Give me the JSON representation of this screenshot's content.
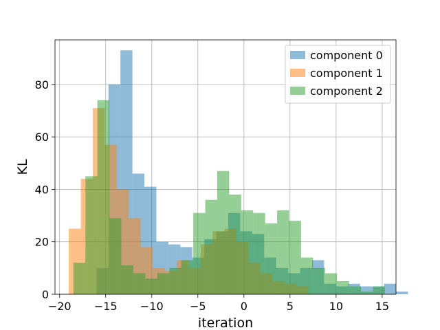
{
  "chart_data": {
    "type": "bar",
    "title": "",
    "xlabel": "iteration",
    "ylabel": "KL",
    "xlim": [
      -20.5,
      16.5
    ],
    "ylim": [
      0,
      97
    ],
    "xticks": [
      -20,
      -15,
      -10,
      -5,
      0,
      5,
      10,
      15
    ],
    "xtick_labels": [
      "−20",
      "−15",
      "−10",
      "−5",
      "0",
      "5",
      "10",
      "15"
    ],
    "yticks": [
      0,
      20,
      40,
      60,
      80
    ],
    "ytick_labels": [
      "0",
      "20",
      "40",
      "60",
      "80"
    ],
    "grid": true,
    "legend_position": "top-right",
    "series": [
      {
        "name": "component 0",
        "color": "#1f77b4",
        "alpha": 0.5,
        "bin_start": -16.0,
        "bin_width": 1.3,
        "values": [
          10,
          80,
          93,
          46,
          41,
          20,
          19,
          18,
          14,
          21,
          24,
          31,
          24,
          23,
          14,
          10,
          8,
          10,
          13,
          4,
          3,
          4,
          3,
          3,
          4,
          1
        ]
      },
      {
        "name": "component 1",
        "color": "#ff7f0e",
        "alpha": 0.5,
        "bin_start": -19.0,
        "bin_width": 1.3,
        "values": [
          25,
          44,
          71,
          57,
          40,
          29,
          18,
          10,
          9,
          13,
          10,
          19,
          24,
          25,
          20,
          12,
          8,
          5,
          4,
          3
        ]
      },
      {
        "name": "component 2",
        "color": "#2ca02c",
        "alpha": 0.5,
        "bin_start": -18.5,
        "bin_width": 1.3,
        "values": [
          12,
          45,
          74,
          29,
          11,
          8,
          6,
          8,
          10,
          13,
          31,
          36,
          47,
          38,
          32,
          31,
          27,
          32,
          28,
          14,
          10,
          8,
          5,
          3,
          1,
          3
        ]
      }
    ]
  }
}
